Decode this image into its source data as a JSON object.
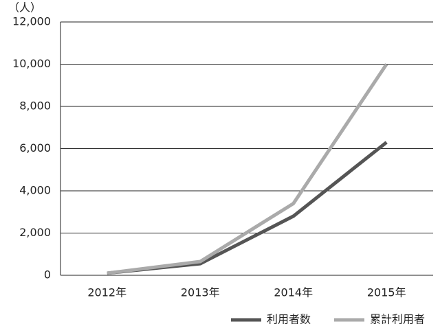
{
  "chart_data": {
    "type": "line",
    "y_unit": "（人）",
    "categories": [
      "2012年",
      "2013年",
      "2014年",
      "2015年"
    ],
    "series": [
      {
        "name": "利用者数",
        "color": "#555555",
        "values": [
          100,
          550,
          2800,
          6300
        ]
      },
      {
        "name": "累計利用者",
        "color": "#aaaaaa",
        "values": [
          100,
          650,
          3400,
          10000
        ]
      }
    ],
    "ylim": [
      0,
      12000
    ],
    "yticks": [
      0,
      {
        "value": 2000,
        "label": "2,000"
      },
      {
        "value": 4000,
        "label": "4,000"
      },
      {
        "value": 6000,
        "label": "6,000"
      },
      {
        "value": 8000,
        "label": "8,000"
      },
      {
        "value": 10000,
        "label": "10,000"
      },
      {
        "value": 12000,
        "label": "12,000"
      }
    ],
    "grid": true,
    "legend": "bottom-right"
  }
}
